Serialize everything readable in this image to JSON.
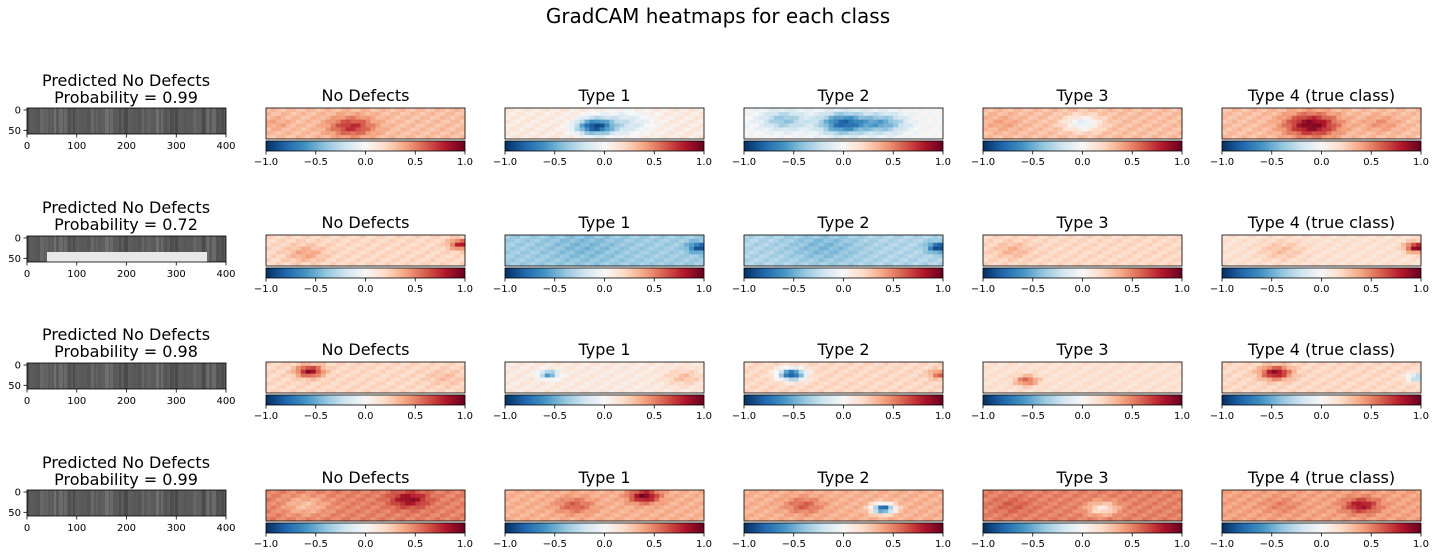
{
  "figure": {
    "suptitle": "GradCAM heatmaps for each class"
  },
  "chart_data": {
    "type": "heatmap",
    "title": "GradCAM heatmaps for each class",
    "layout": "4 rows x 6 columns",
    "image_axes": {
      "xticks": [
        0,
        100,
        200,
        300,
        400
      ],
      "yticks": [
        0,
        50
      ],
      "xlim": [
        0,
        400
      ],
      "ylim": [
        0,
        64
      ]
    },
    "colorbar": {
      "colormap": "RdBu_r",
      "range": [
        -1.0,
        1.0
      ],
      "tick_labels": [
        "−1.0",
        "−0.5",
        "0.0",
        "0.5",
        "1.0"
      ]
    },
    "column_titles": [
      "No Defects",
      "Type 1",
      "Type 2",
      "Type 3",
      "Type 4 (true class)"
    ],
    "rows": [
      {
        "prediction": "Predicted No Defects",
        "probability": "Probability = 0.99",
        "heatmaps": [
          {
            "base": 0.3,
            "blobs": [
              {
                "x": 0.43,
                "y": 0.6,
                "r": 0.12,
                "v": 0.75
              },
              {
                "x": 0.05,
                "y": 0.5,
                "r": 0.08,
                "v": 0.4
              },
              {
                "x": 0.72,
                "y": 0.4,
                "r": 0.12,
                "v": 0.3
              }
            ]
          },
          {
            "base": 0.1,
            "blobs": [
              {
                "x": 0.45,
                "y": 0.6,
                "r": 0.1,
                "v": -0.85
              },
              {
                "x": 0.6,
                "y": 0.5,
                "r": 0.15,
                "v": -0.2
              }
            ]
          },
          {
            "base": 0.0,
            "blobs": [
              {
                "x": 0.5,
                "y": 0.5,
                "r": 0.13,
                "v": -0.8
              },
              {
                "x": 0.2,
                "y": 0.4,
                "r": 0.12,
                "v": -0.4
              },
              {
                "x": 0.7,
                "y": 0.5,
                "r": 0.12,
                "v": -0.5
              }
            ]
          },
          {
            "base": 0.3,
            "blobs": [
              {
                "x": 0.5,
                "y": 0.5,
                "r": 0.1,
                "v": -0.1
              },
              {
                "x": 0.1,
                "y": 0.5,
                "r": 0.1,
                "v": 0.4
              }
            ]
          },
          {
            "base": 0.3,
            "blobs": [
              {
                "x": 0.45,
                "y": 0.55,
                "r": 0.14,
                "v": 0.95
              },
              {
                "x": 0.8,
                "y": 0.5,
                "r": 0.1,
                "v": 0.45
              }
            ]
          }
        ]
      },
      {
        "prediction": "Predicted No Defects",
        "probability": "Probability = 0.72",
        "heatmaps": [
          {
            "base": 0.2,
            "blobs": [
              {
                "x": 0.98,
                "y": 0.3,
                "r": 0.06,
                "v": 0.8
              },
              {
                "x": 0.2,
                "y": 0.6,
                "r": 0.1,
                "v": 0.4
              }
            ]
          },
          {
            "base": -0.35,
            "blobs": [
              {
                "x": 0.98,
                "y": 0.4,
                "r": 0.06,
                "v": -0.9
              },
              {
                "x": 0.4,
                "y": 0.4,
                "r": 0.2,
                "v": -0.45
              }
            ]
          },
          {
            "base": -0.3,
            "blobs": [
              {
                "x": 0.98,
                "y": 0.4,
                "r": 0.06,
                "v": -0.95
              },
              {
                "x": 0.4,
                "y": 0.4,
                "r": 0.2,
                "v": -0.45
              }
            ]
          },
          {
            "base": 0.2,
            "blobs": [
              {
                "x": 0.15,
                "y": 0.5,
                "r": 0.1,
                "v": 0.35
              }
            ]
          },
          {
            "base": 0.15,
            "blobs": [
              {
                "x": 0.98,
                "y": 0.4,
                "r": 0.06,
                "v": 0.95
              },
              {
                "x": 0.3,
                "y": 0.5,
                "r": 0.12,
                "v": 0.3
              }
            ]
          }
        ]
      },
      {
        "prediction": "Predicted No Defects",
        "probability": "Probability = 0.98",
        "heatmaps": [
          {
            "base": 0.2,
            "blobs": [
              {
                "x": 0.22,
                "y": 0.3,
                "r": 0.07,
                "v": 0.9
              },
              {
                "x": 0.9,
                "y": 0.5,
                "r": 0.1,
                "v": 0.3
              }
            ]
          },
          {
            "base": 0.1,
            "blobs": [
              {
                "x": 0.22,
                "y": 0.4,
                "r": 0.05,
                "v": -0.6
              },
              {
                "x": 0.9,
                "y": 0.5,
                "r": 0.1,
                "v": 0.3
              }
            ]
          },
          {
            "base": 0.2,
            "blobs": [
              {
                "x": 0.24,
                "y": 0.4,
                "r": 0.07,
                "v": -0.9
              },
              {
                "x": 0.98,
                "y": 0.4,
                "r": 0.05,
                "v": 0.6
              }
            ]
          },
          {
            "base": 0.15,
            "blobs": [
              {
                "x": 0.22,
                "y": 0.6,
                "r": 0.06,
                "v": 0.6
              }
            ]
          },
          {
            "base": 0.2,
            "blobs": [
              {
                "x": 0.27,
                "y": 0.35,
                "r": 0.08,
                "v": 0.9
              },
              {
                "x": 0.98,
                "y": 0.5,
                "r": 0.05,
                "v": -0.35
              }
            ]
          }
        ]
      },
      {
        "prediction": "Predicted No Defects",
        "probability": "Probability = 0.99",
        "heatmaps": [
          {
            "base": 0.5,
            "blobs": [
              {
                "x": 0.72,
                "y": 0.3,
                "r": 0.1,
                "v": 0.9
              },
              {
                "x": 0.2,
                "y": 0.5,
                "r": 0.12,
                "v": 0.3
              }
            ]
          },
          {
            "base": 0.35,
            "blobs": [
              {
                "x": 0.7,
                "y": 0.2,
                "r": 0.08,
                "v": 0.95
              },
              {
                "x": 0.35,
                "y": 0.5,
                "r": 0.1,
                "v": 0.6
              }
            ]
          },
          {
            "base": 0.35,
            "blobs": [
              {
                "x": 0.7,
                "y": 0.6,
                "r": 0.06,
                "v": -0.85
              },
              {
                "x": 0.3,
                "y": 0.5,
                "r": 0.1,
                "v": 0.6
              }
            ]
          },
          {
            "base": 0.5,
            "blobs": [
              {
                "x": 0.6,
                "y": 0.6,
                "r": 0.08,
                "v": 0.1
              },
              {
                "x": 0.15,
                "y": 0.5,
                "r": 0.1,
                "v": 0.6
              }
            ]
          },
          {
            "base": 0.4,
            "blobs": [
              {
                "x": 0.7,
                "y": 0.5,
                "r": 0.09,
                "v": 0.85
              },
              {
                "x": 0.3,
                "y": 0.5,
                "r": 0.1,
                "v": 0.5
              }
            ]
          }
        ]
      }
    ]
  }
}
